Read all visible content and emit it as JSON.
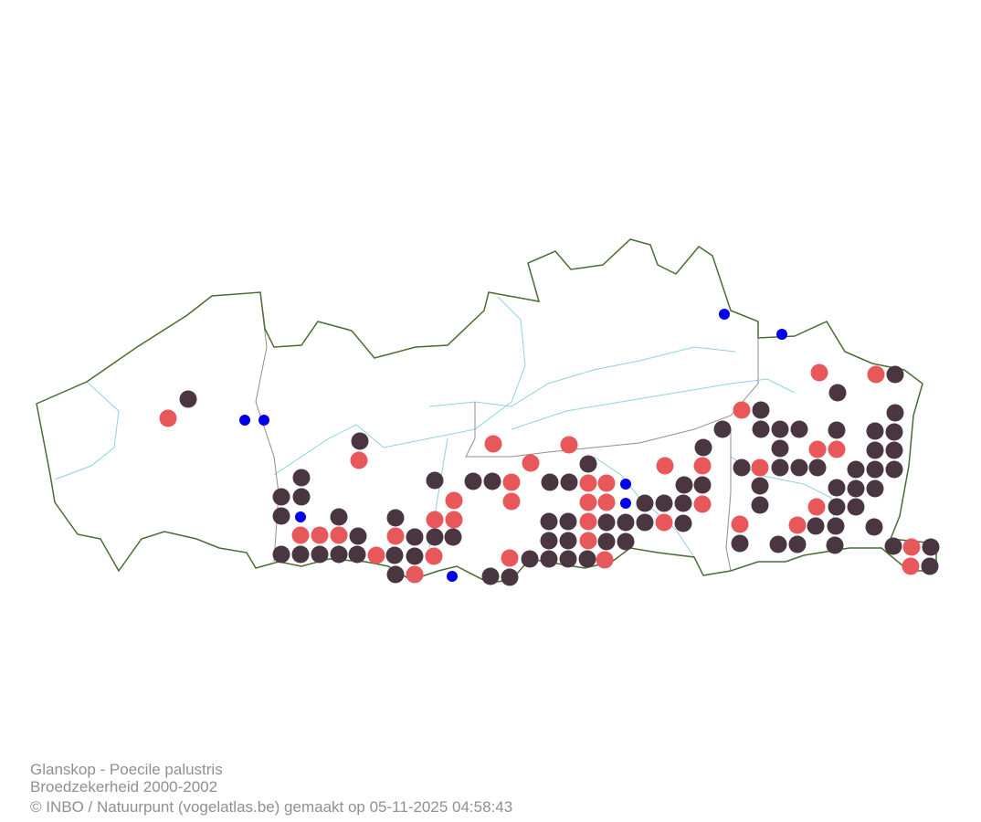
{
  "caption": {
    "title": "Glanskop - Poecile palustris",
    "subtitle": "Broedzekerheid 2000-2002",
    "credit": "© INBO / Natuurpunt (vogelatlas.be) gemaakt op 05-11-2025 04:58:43"
  }
}
